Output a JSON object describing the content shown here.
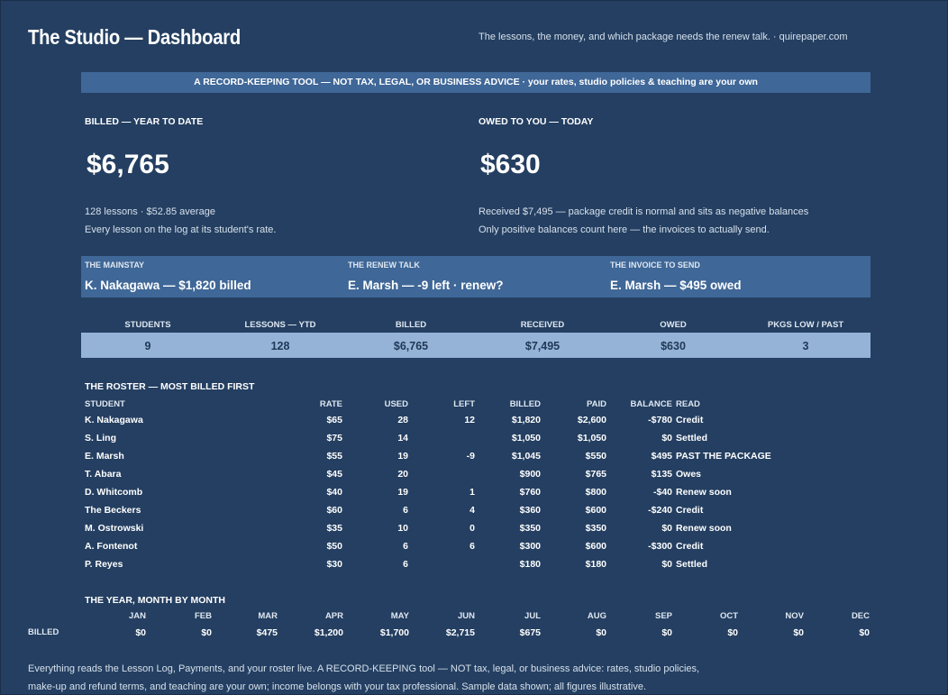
{
  "header": {
    "title": "The Studio — Dashboard",
    "tagline": "The lessons, the money, and which package needs the renew talk.  ·  quirepaper.com"
  },
  "banner": "A RECORD-KEEPING TOOL — NOT TAX, LEGAL, OR BUSINESS ADVICE  ·  your rates, studio policies & teaching are your own",
  "kpis": {
    "billed": {
      "label": "BILLED — YEAR TO DATE",
      "value": "$6,765",
      "note1": "128 lessons  ·  $52.85 average",
      "note2": "Every lesson on the log at its student's rate."
    },
    "owed": {
      "label": "OWED TO YOU — TODAY",
      "value": "$630",
      "note1": "Received $7,495 — package credit is normal and sits as negative balances",
      "note2": "Only positive balances count here — the invoices to actually send."
    }
  },
  "callouts": [
    {
      "label": "THE MAINSTAY",
      "value": "K. Nakagawa — $1,820 billed"
    },
    {
      "label": "THE RENEW TALK",
      "value": "E. Marsh — -9 left · renew?"
    },
    {
      "label": "THE INVOICE TO SEND",
      "value": "E. Marsh — $495 owed"
    }
  ],
  "stats": [
    {
      "label": "STUDENTS",
      "value": "9"
    },
    {
      "label": "LESSONS — YTD",
      "value": "128"
    },
    {
      "label": "BILLED",
      "value": "$6,765"
    },
    {
      "label": "RECEIVED",
      "value": "$7,495"
    },
    {
      "label": "OWED",
      "value": "$630"
    },
    {
      "label": "PKGS LOW / PAST",
      "value": "3"
    }
  ],
  "roster": {
    "title": "THE ROSTER — MOST BILLED FIRST",
    "columns": [
      "STUDENT",
      "RATE",
      "USED",
      "LEFT",
      "BILLED",
      "PAID",
      "BALANCE",
      "READ"
    ],
    "rows": [
      [
        "K. Nakagawa",
        "$65",
        "28",
        "12",
        "$1,820",
        "$2,600",
        "-$780",
        "Credit"
      ],
      [
        "S. Ling",
        "$75",
        "14",
        "",
        "$1,050",
        "$1,050",
        "$0",
        "Settled"
      ],
      [
        "E. Marsh",
        "$55",
        "19",
        "-9",
        "$1,045",
        "$550",
        "$495",
        "PAST THE PACKAGE"
      ],
      [
        "T. Abara",
        "$45",
        "20",
        "",
        "$900",
        "$765",
        "$135",
        "Owes"
      ],
      [
        "D. Whitcomb",
        "$40",
        "19",
        "1",
        "$760",
        "$800",
        "-$40",
        "Renew soon"
      ],
      [
        "The Beckers",
        "$60",
        "6",
        "4",
        "$360",
        "$600",
        "-$240",
        "Credit"
      ],
      [
        "M. Ostrowski",
        "$35",
        "10",
        "0",
        "$350",
        "$350",
        "$0",
        "Renew soon"
      ],
      [
        "A. Fontenot",
        "$50",
        "6",
        "6",
        "$300",
        "$600",
        "-$300",
        "Credit"
      ],
      [
        "P. Reyes",
        "$30",
        "6",
        "",
        "$180",
        "$180",
        "$0",
        "Settled"
      ]
    ]
  },
  "monthly": {
    "title": "THE YEAR, MONTH BY MONTH",
    "row_label": "BILLED",
    "months": [
      "JAN",
      "FEB",
      "MAR",
      "APR",
      "MAY",
      "JUN",
      "JUL",
      "AUG",
      "SEP",
      "OCT",
      "NOV",
      "DEC"
    ],
    "values": [
      "$0",
      "$0",
      "$475",
      "$1,200",
      "$1,700",
      "$2,715",
      "$675",
      "$0",
      "$0",
      "$0",
      "$0",
      "$0"
    ]
  },
  "footer": {
    "line1": "Everything reads the Lesson Log, Payments, and your roster live. A RECORD-KEEPING tool — NOT tax, legal, or business advice: rates, studio policies,",
    "line2": "make-up and refund terms, and teaching are your own; income belongs with your tax professional. Sample data shown; all figures illustrative."
  }
}
